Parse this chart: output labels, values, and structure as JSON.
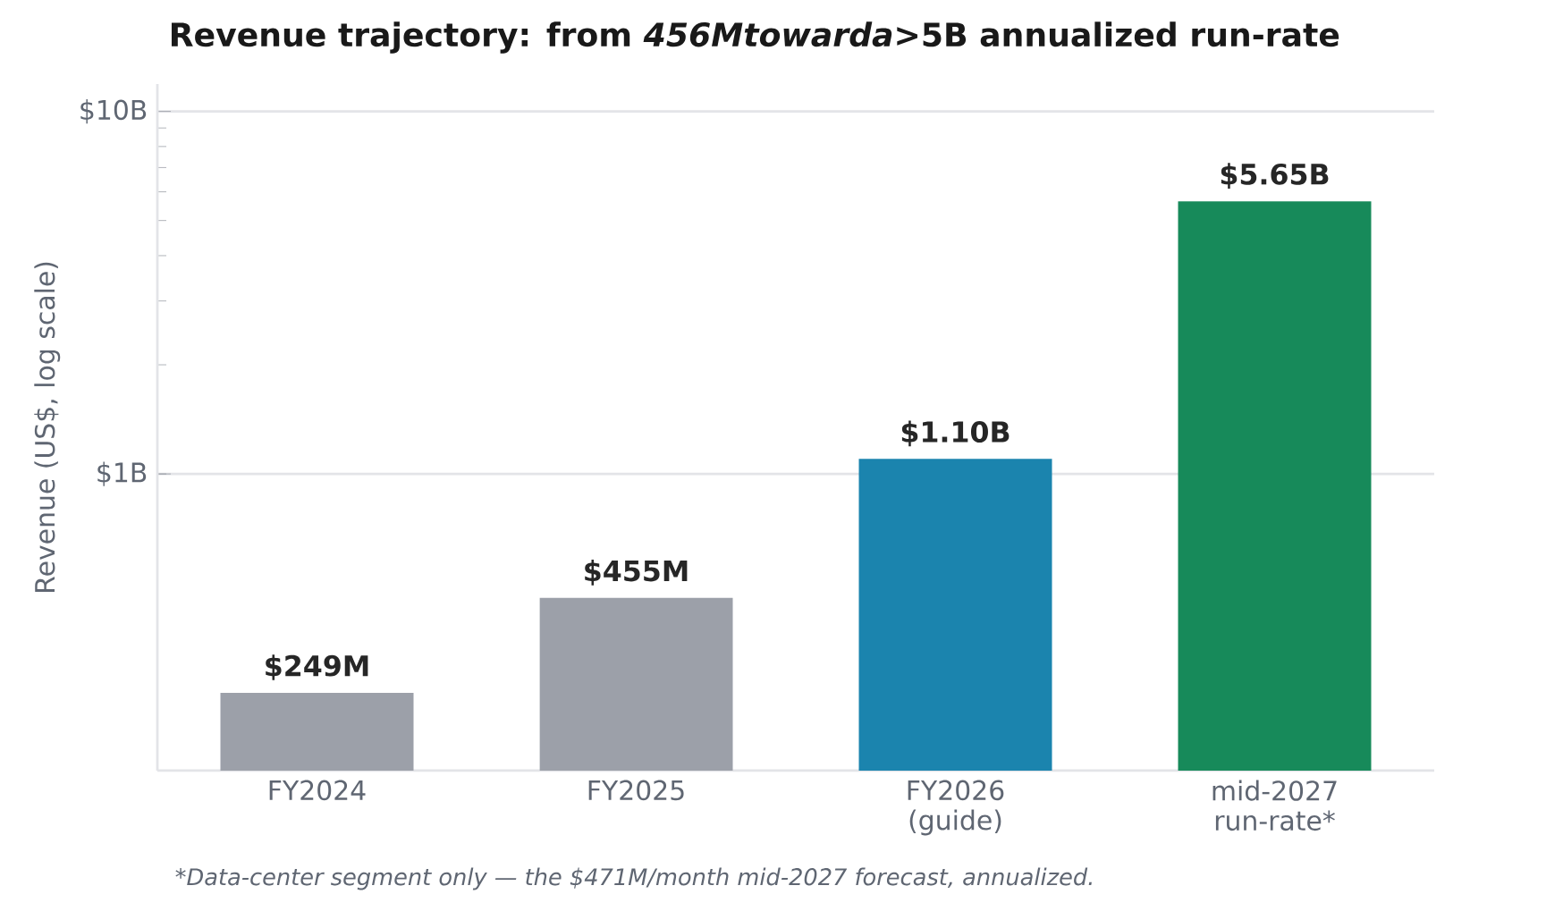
{
  "chart_data": {
    "type": "bar",
    "title": "Revenue trajectory: from *456Mtowarda*>5B annualized run-rate",
    "ylabel": "Revenue (US$, log scale)",
    "categories": [
      "FY2024",
      "FY2025",
      "FY2026 (guide)",
      "mid-2027 run-rate*"
    ],
    "values": [
      249000000,
      455000000,
      1100000000,
      5650000000
    ],
    "value_labels": [
      "$249M",
      "$455M",
      "$1.10B",
      "$5.65B"
    ],
    "colors": [
      "#9ca0a9",
      "#9ca0a9",
      "#1b84ae",
      "#178a5a"
    ],
    "log": "y",
    "ylim": [
      152000000,
      11900000000
    ],
    "yticks": [
      {
        "value": 1000000000,
        "label": "$1B"
      },
      {
        "value": 10000000000,
        "label": "$10B"
      }
    ],
    "grid": "y",
    "annotations": [
      "*Data-center segment only — the $471M/month mid-2027 forecast, annualized."
    ]
  }
}
